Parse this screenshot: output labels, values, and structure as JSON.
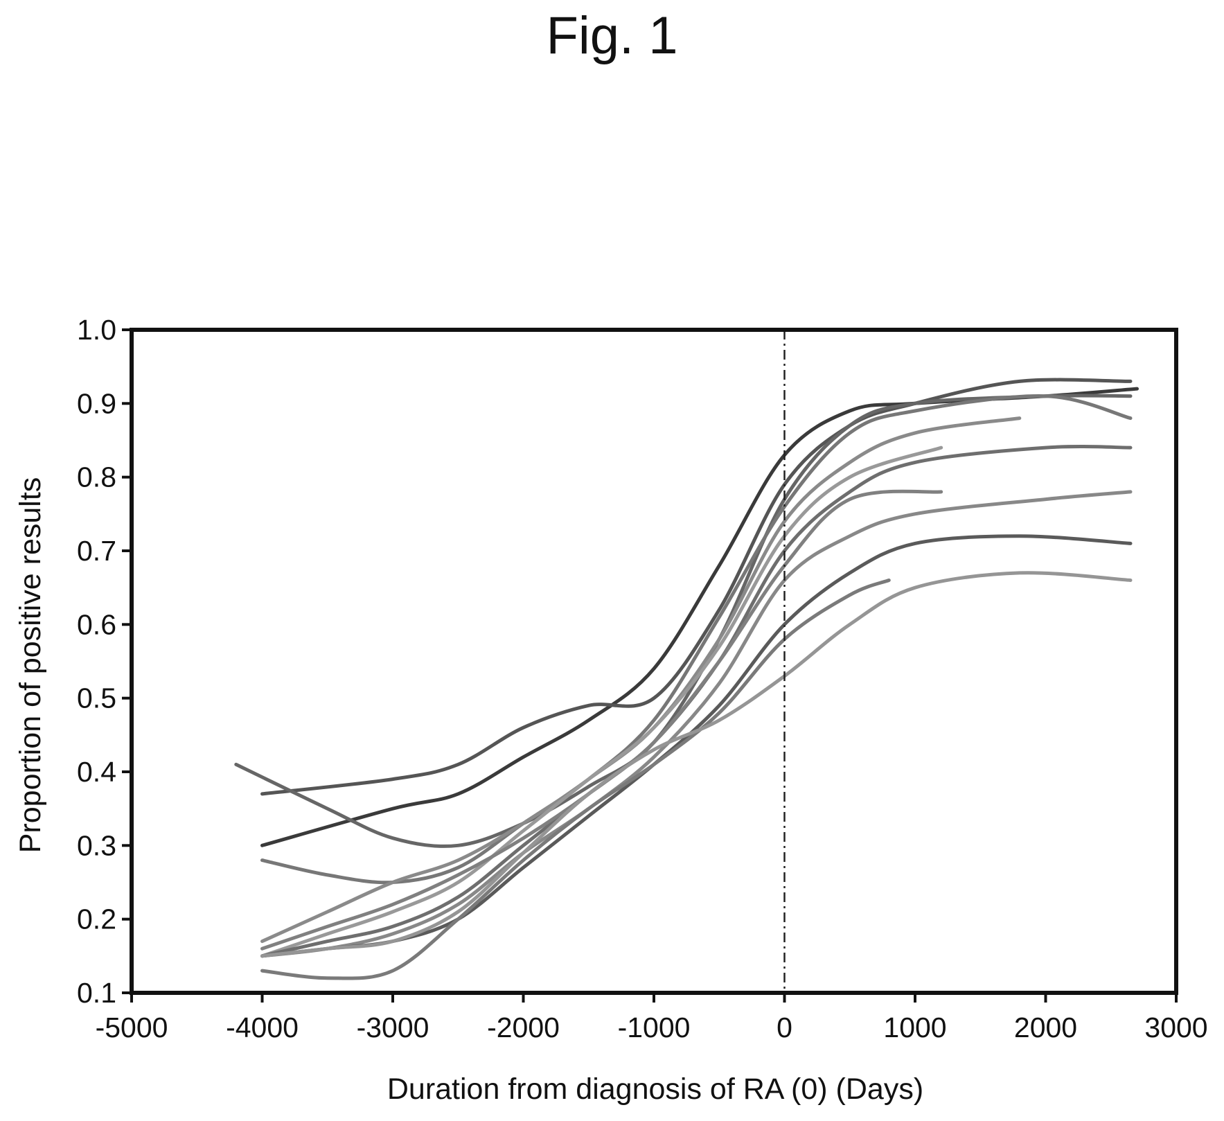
{
  "figure": {
    "title": "Fig. 1"
  },
  "chart_data": {
    "type": "line",
    "title": "",
    "xlabel": "Duration from diagnosis of RA (0) (Days)",
    "ylabel": "Proportion of positive results",
    "xlim": [
      -5000,
      3000
    ],
    "ylim": [
      0.1,
      1.0
    ],
    "xticks": [
      "-5000",
      "-4000",
      "-3000",
      "-2000",
      "-1000",
      "0",
      "1000",
      "2000",
      "3000"
    ],
    "yticks": [
      "0.1",
      "0.2",
      "0.3",
      "0.4",
      "0.5",
      "0.6",
      "0.7",
      "0.8",
      "0.9",
      "1.0"
    ],
    "grid": false,
    "legend": "none",
    "reference_line": {
      "x": 0,
      "style": "dash-dot"
    },
    "series": [
      {
        "color": "#3a3a3a",
        "x": [
          -4000,
          -3000,
          -2500,
          -2000,
          -1500,
          -1000,
          -500,
          0,
          500,
          1000,
          2000,
          2700
        ],
        "y": [
          0.3,
          0.35,
          0.37,
          0.42,
          0.47,
          0.54,
          0.68,
          0.83,
          0.89,
          0.9,
          0.91,
          0.92
        ]
      },
      {
        "color": "#555555",
        "x": [
          -4000,
          -3000,
          -2500,
          -2000,
          -1500,
          -1000,
          -500,
          0,
          500,
          1000,
          1800,
          2650
        ],
        "y": [
          0.37,
          0.39,
          0.41,
          0.46,
          0.49,
          0.5,
          0.62,
          0.79,
          0.87,
          0.9,
          0.93,
          0.93
        ]
      },
      {
        "color": "#666666",
        "x": [
          -4200,
          -3500,
          -3000,
          -2500,
          -2000,
          -1500,
          -1000,
          -500,
          0,
          500,
          1000,
          2000,
          2650
        ],
        "y": [
          0.41,
          0.35,
          0.31,
          0.3,
          0.33,
          0.38,
          0.44,
          0.58,
          0.77,
          0.87,
          0.9,
          0.91,
          0.91
        ]
      },
      {
        "color": "#777777",
        "x": [
          -4000,
          -3500,
          -3000,
          -2500,
          -2000,
          -1500,
          -1000,
          -500,
          0,
          500,
          1000,
          2000,
          2650
        ],
        "y": [
          0.28,
          0.26,
          0.25,
          0.27,
          0.33,
          0.39,
          0.47,
          0.61,
          0.76,
          0.86,
          0.89,
          0.91,
          0.88
        ]
      },
      {
        "color": "#8a8a8a",
        "x": [
          -4000,
          -3500,
          -3000,
          -2500,
          -2000,
          -1500,
          -1000,
          -500,
          0,
          500,
          1000,
          1800
        ],
        "y": [
          0.17,
          0.21,
          0.25,
          0.28,
          0.33,
          0.39,
          0.46,
          0.58,
          0.74,
          0.82,
          0.86,
          0.88
        ]
      },
      {
        "color": "#999999",
        "x": [
          -4000,
          -3500,
          -3000,
          -2500,
          -2000,
          -1500,
          -1000,
          -500,
          0,
          500,
          1200
        ],
        "y": [
          0.15,
          0.18,
          0.21,
          0.25,
          0.32,
          0.39,
          0.46,
          0.57,
          0.72,
          0.8,
          0.84
        ]
      },
      {
        "color": "#6e6e6e",
        "x": [
          -4000,
          -3500,
          -3000,
          -2500,
          -2000,
          -1500,
          -1000,
          -500,
          0,
          500,
          1000,
          2000,
          2650
        ],
        "y": [
          0.15,
          0.17,
          0.19,
          0.23,
          0.3,
          0.37,
          0.44,
          0.55,
          0.7,
          0.78,
          0.82,
          0.84,
          0.84
        ]
      },
      {
        "color": "#808080",
        "x": [
          -4000,
          -3500,
          -3000,
          -2500,
          -2000,
          -1500,
          -1000,
          -500,
          0,
          500,
          1200
        ],
        "y": [
          0.16,
          0.19,
          0.22,
          0.26,
          0.31,
          0.37,
          0.44,
          0.55,
          0.68,
          0.77,
          0.78
        ]
      },
      {
        "color": "#888888",
        "x": [
          -4000,
          -3500,
          -3000,
          -2500,
          -2000,
          -1500,
          -1000,
          -500,
          0,
          500,
          1000,
          2000,
          2650
        ],
        "y": [
          0.15,
          0.16,
          0.18,
          0.22,
          0.29,
          0.35,
          0.42,
          0.52,
          0.66,
          0.72,
          0.75,
          0.77,
          0.78
        ]
      },
      {
        "color": "#5a5a5a",
        "x": [
          -4000,
          -3500,
          -3000,
          -2500,
          -2000,
          -1500,
          -1000,
          -500,
          0,
          500,
          1000,
          1800,
          2650
        ],
        "y": [
          0.15,
          0.16,
          0.17,
          0.2,
          0.27,
          0.34,
          0.41,
          0.49,
          0.6,
          0.67,
          0.71,
          0.72,
          0.71
        ]
      },
      {
        "color": "#7a7a7a",
        "x": [
          -4000,
          -3500,
          -3000,
          -2500,
          -2000,
          -1500,
          -1000,
          -500,
          0,
          500,
          800
        ],
        "y": [
          0.13,
          0.12,
          0.13,
          0.2,
          0.28,
          0.35,
          0.41,
          0.48,
          0.58,
          0.64,
          0.66
        ]
      },
      {
        "color": "#959595",
        "x": [
          -4000,
          -3500,
          -3000,
          -2500,
          -2000,
          -1500,
          -1000,
          -500,
          0,
          500,
          1000,
          1800,
          2650
        ],
        "y": [
          0.15,
          0.16,
          0.17,
          0.21,
          0.29,
          0.37,
          0.43,
          0.47,
          0.53,
          0.6,
          0.65,
          0.67,
          0.66
        ]
      }
    ]
  }
}
